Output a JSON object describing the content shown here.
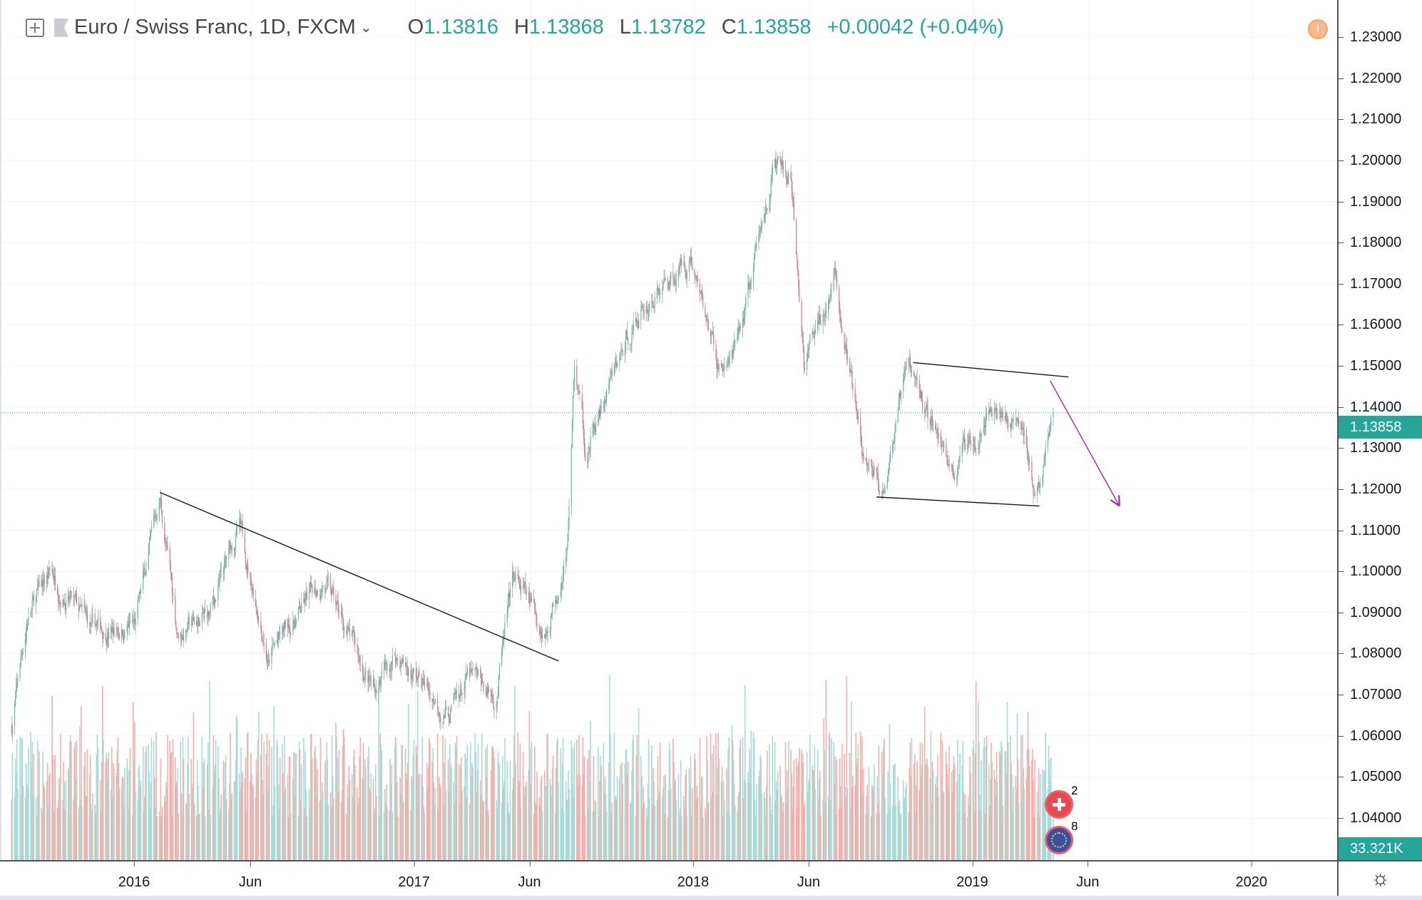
{
  "header": {
    "symbol_title": "Euro / Swiss Franc, 1D, FXCM",
    "ohlc": [
      {
        "key": "O",
        "value": "1.13816"
      },
      {
        "key": "H",
        "value": "1.13868"
      },
      {
        "key": "L",
        "value": "1.13782"
      },
      {
        "key": "C",
        "value": "1.13858"
      }
    ],
    "change": "+0.00042 (+0.04%)"
  },
  "icons": {
    "add": "plus-square-icon",
    "symbol": "flag-icon",
    "dropdown": "chevron-down-icon",
    "alert": "alert-clock-icon",
    "settings": "gear-icon"
  },
  "price_axis": {
    "ticks": [
      "1.23000",
      "1.22000",
      "1.21000",
      "1.20000",
      "1.19000",
      "1.18000",
      "1.17000",
      "1.16000",
      "1.15000",
      "1.14000",
      "1.13000",
      "1.12000",
      "1.11000",
      "1.10000",
      "1.09000",
      "1.08000",
      "1.07000",
      "1.06000",
      "1.05000",
      "1.04000"
    ],
    "current_price_label": "1.13858",
    "volume_label": "33.321K"
  },
  "time_axis": {
    "ticks": [
      {
        "label": "2016",
        "date": "2016-01-01"
      },
      {
        "label": "Jun",
        "date": "2016-06-01"
      },
      {
        "label": "2017",
        "date": "2017-01-01"
      },
      {
        "label": "Jun",
        "date": "2017-06-01"
      },
      {
        "label": "2018",
        "date": "2018-01-01"
      },
      {
        "label": "Jun",
        "date": "2018-06-01"
      },
      {
        "label": "2019",
        "date": "2019-01-01"
      },
      {
        "label": "Jun",
        "date": "2019-06-01"
      },
      {
        "label": "2020",
        "date": "2020-01-01"
      }
    ]
  },
  "events": [
    {
      "country": "Switzerland",
      "count": "2",
      "icon": "swiss-flag-icon"
    },
    {
      "country": "Euro Area",
      "count": "8",
      "icon": "eu-flag-icon"
    }
  ],
  "colors": {
    "up": "#26a69a",
    "down": "#ef5350",
    "up_volume": "#a6dcd6",
    "down_volume": "#f6aeab",
    "drawing": "#131722",
    "arrow": "#9c27b0",
    "price_line": "#26a69a"
  },
  "chart_data": {
    "type": "candlestick",
    "symbol": "EURCHF",
    "interval": "1D",
    "last_close": 1.13858,
    "ylim": [
      1.035,
      1.235
    ],
    "xlim": [
      "2015-07-20",
      "2020-04-20"
    ],
    "grid": true,
    "price_path": [
      [
        "2015-07-23",
        1.0625
      ],
      [
        "2015-08-13",
        1.089
      ],
      [
        "2015-09-12",
        1.1
      ],
      [
        "2015-11-04",
        1.085
      ],
      [
        "2016-01-01",
        1.087
      ],
      [
        "2016-02-02",
        1.118
      ],
      [
        "2016-02-25",
        1.085
      ],
      [
        "2016-04-07",
        1.089
      ],
      [
        "2016-05-15",
        1.111
      ],
      [
        "2016-06-17",
        1.085
      ],
      [
        "2016-06-23",
        1.078
      ],
      [
        "2016-06-26",
        1.08
      ],
      [
        "2016-09-02",
        1.098
      ],
      [
        "2016-11-07",
        1.071
      ],
      [
        "2016-12-06",
        1.08
      ],
      [
        "2017-02-15",
        1.065
      ],
      [
        "2017-03-11",
        1.074
      ],
      [
        "2017-04-16",
        1.069
      ],
      [
        "2017-04-28",
        1.085
      ],
      [
        "2017-05-10",
        1.098
      ],
      [
        "2017-06-20",
        1.085
      ],
      [
        "2017-07-19",
        1.107
      ],
      [
        "2017-07-28",
        1.151
      ],
      [
        "2017-08-12",
        1.129
      ],
      [
        "2017-10-17",
        1.162
      ],
      [
        "2017-12-27",
        1.177
      ],
      [
        "2018-02-01",
        1.149
      ],
      [
        "2018-02-24",
        1.153
      ],
      [
        "2018-03-25",
        1.179
      ],
      [
        "2018-04-15",
        1.199
      ],
      [
        "2018-05-06",
        1.195
      ],
      [
        "2018-05-24",
        1.15
      ],
      [
        "2018-07-04",
        1.171
      ],
      [
        "2018-08-09",
        1.127
      ],
      [
        "2018-09-02",
        1.12
      ],
      [
        "2018-10-08",
        1.149
      ],
      [
        "2018-12-06",
        1.124
      ],
      [
        "2019-01-22",
        1.142
      ],
      [
        "2019-03-10",
        1.133
      ],
      [
        "2019-03-22",
        1.117
      ],
      [
        "2019-04-15",
        1.13858
      ]
    ],
    "drawings": [
      {
        "type": "trendline",
        "points": [
          [
            "2016-02-02",
            1.1192
          ],
          [
            "2017-07-07",
            1.0782
          ]
        ]
      },
      {
        "type": "trendline",
        "points": [
          [
            "2018-10-14",
            1.1508
          ],
          [
            "2019-05-05",
            1.1473
          ]
        ]
      },
      {
        "type": "trendline",
        "points": [
          [
            "2018-08-27",
            1.1181
          ],
          [
            "2019-03-28",
            1.1159
          ]
        ]
      },
      {
        "type": "arrow",
        "points": [
          [
            "2019-04-11",
            1.1464
          ],
          [
            "2019-07-10",
            1.1161
          ]
        ]
      }
    ]
  }
}
